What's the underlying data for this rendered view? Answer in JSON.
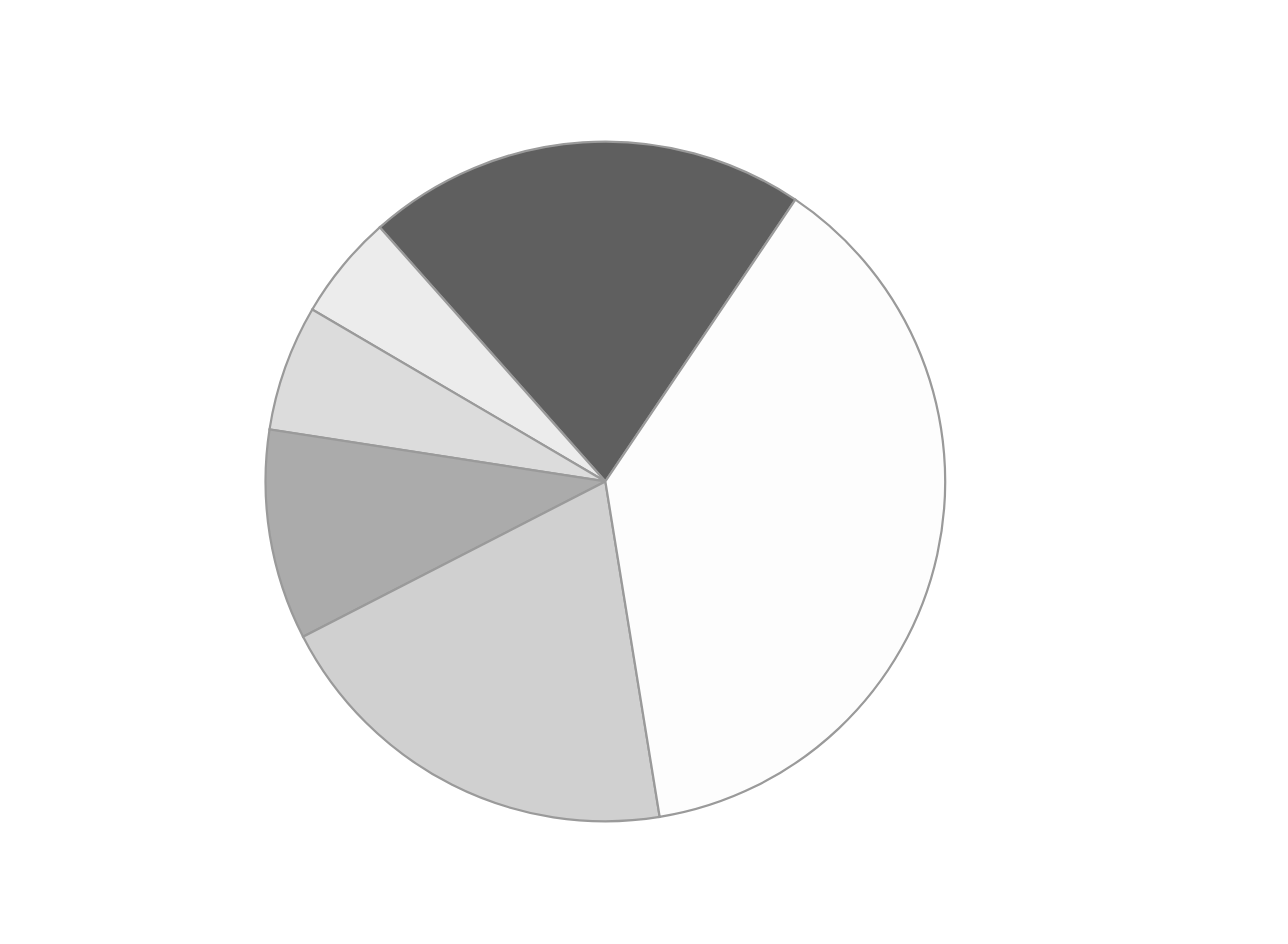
{
  "chart_data": {
    "type": "pie",
    "categories": [
      null,
      null,
      null,
      null,
      null,
      null
    ],
    "values": [
      21,
      5,
      6,
      10,
      20,
      38
    ],
    "colors": [
      "#5f5f5f",
      "#ececec",
      "#dcdcdc",
      "#ababab",
      "#d0d0d0",
      "#fdfdfd"
    ]
  }
}
